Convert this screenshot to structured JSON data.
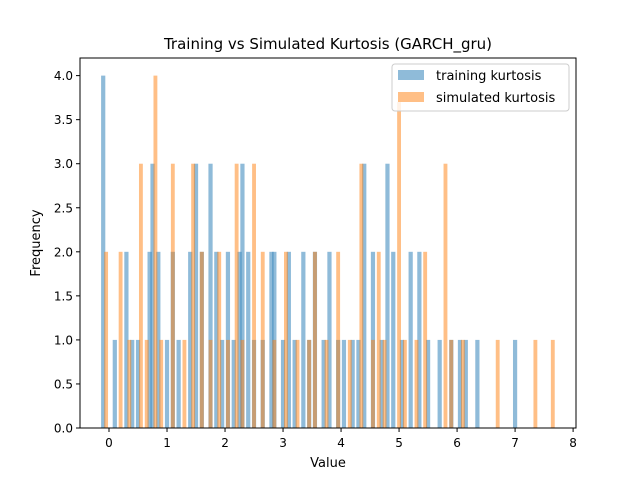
{
  "chart_data": {
    "type": "histogram",
    "title": "Training vs Simulated Kurtosis (GARCH_gru)",
    "xlabel": "Value",
    "ylabel": "Frequency",
    "xlim": [
      -0.5,
      8.05
    ],
    "ylim": [
      0,
      4.2
    ],
    "xticks": [
      "0",
      "1",
      "2",
      "3",
      "4",
      "5",
      "6",
      "7",
      "8"
    ],
    "xtick_values": [
      0,
      1,
      2,
      3,
      4,
      5,
      6,
      7,
      8
    ],
    "yticks": [
      "0.0",
      "0.5",
      "1.0",
      "1.5",
      "2.0",
      "2.5",
      "3.0",
      "3.5",
      "4.0"
    ],
    "ytick_values": [
      0,
      0.5,
      1,
      1.5,
      2,
      2.5,
      3,
      3.5,
      4
    ],
    "legend_position": "top-right",
    "grid": false,
    "alpha": 0.5,
    "series": [
      {
        "name": "training kurtosis",
        "color": "#1f77b4",
        "bin_width": 0.0725,
        "bars": [
          [
            -0.1,
            4
          ],
          [
            0.1,
            1
          ],
          [
            0.3,
            2
          ],
          [
            0.4,
            1
          ],
          [
            0.5,
            1
          ],
          [
            0.7,
            2
          ],
          [
            0.75,
            3
          ],
          [
            0.85,
            2
          ],
          [
            1.0,
            1
          ],
          [
            1.1,
            2
          ],
          [
            1.2,
            1
          ],
          [
            1.4,
            2
          ],
          [
            1.5,
            3
          ],
          [
            1.6,
            2
          ],
          [
            1.75,
            3
          ],
          [
            1.85,
            2
          ],
          [
            1.95,
            1
          ],
          [
            2.05,
            2
          ],
          [
            2.15,
            1
          ],
          [
            2.25,
            2
          ],
          [
            2.3,
            3
          ],
          [
            2.4,
            2
          ],
          [
            2.5,
            1
          ],
          [
            2.65,
            1
          ],
          [
            2.8,
            2
          ],
          [
            2.85,
            2
          ],
          [
            3.0,
            1
          ],
          [
            3.1,
            2
          ],
          [
            3.2,
            1
          ],
          [
            3.35,
            2
          ],
          [
            3.45,
            1
          ],
          [
            3.55,
            2
          ],
          [
            3.7,
            1
          ],
          [
            3.8,
            2
          ],
          [
            3.95,
            1
          ],
          [
            4.05,
            1
          ],
          [
            4.2,
            1
          ],
          [
            4.3,
            1
          ],
          [
            4.4,
            3
          ],
          [
            4.55,
            2
          ],
          [
            4.7,
            1
          ],
          [
            4.8,
            3
          ],
          [
            4.9,
            2
          ],
          [
            5.05,
            1
          ],
          [
            5.2,
            2
          ],
          [
            5.35,
            2
          ],
          [
            5.5,
            1
          ],
          [
            5.7,
            1
          ],
          [
            5.9,
            1
          ],
          [
            6.05,
            1
          ],
          [
            6.15,
            1
          ],
          [
            6.35,
            1
          ],
          [
            7.0,
            1
          ]
        ]
      },
      {
        "name": "simulated kurtosis",
        "color": "#ff7f0e",
        "bin_width": 0.0665,
        "bars": [
          [
            -0.05,
            2
          ],
          [
            0.2,
            2
          ],
          [
            0.35,
            1
          ],
          [
            0.55,
            3
          ],
          [
            0.65,
            1
          ],
          [
            0.8,
            4
          ],
          [
            0.9,
            1
          ],
          [
            1.1,
            3
          ],
          [
            1.3,
            1
          ],
          [
            1.45,
            3
          ],
          [
            1.6,
            2
          ],
          [
            1.75,
            1
          ],
          [
            1.9,
            2
          ],
          [
            2.05,
            1
          ],
          [
            2.2,
            3
          ],
          [
            2.3,
            1
          ],
          [
            2.5,
            3
          ],
          [
            2.65,
            2
          ],
          [
            2.85,
            1
          ],
          [
            3.05,
            2
          ],
          [
            3.25,
            1
          ],
          [
            3.45,
            1
          ],
          [
            3.55,
            2
          ],
          [
            3.75,
            1
          ],
          [
            3.95,
            2
          ],
          [
            4.15,
            1
          ],
          [
            4.35,
            3
          ],
          [
            4.55,
            1
          ],
          [
            4.65,
            2
          ],
          [
            4.75,
            1
          ],
          [
            5.0,
            3.7
          ],
          [
            5.1,
            1
          ],
          [
            5.3,
            1
          ],
          [
            5.45,
            2
          ],
          [
            5.8,
            3
          ],
          [
            5.9,
            1
          ],
          [
            6.1,
            1
          ],
          [
            6.7,
            1
          ],
          [
            7.35,
            1
          ],
          [
            7.65,
            1
          ]
        ]
      }
    ]
  }
}
